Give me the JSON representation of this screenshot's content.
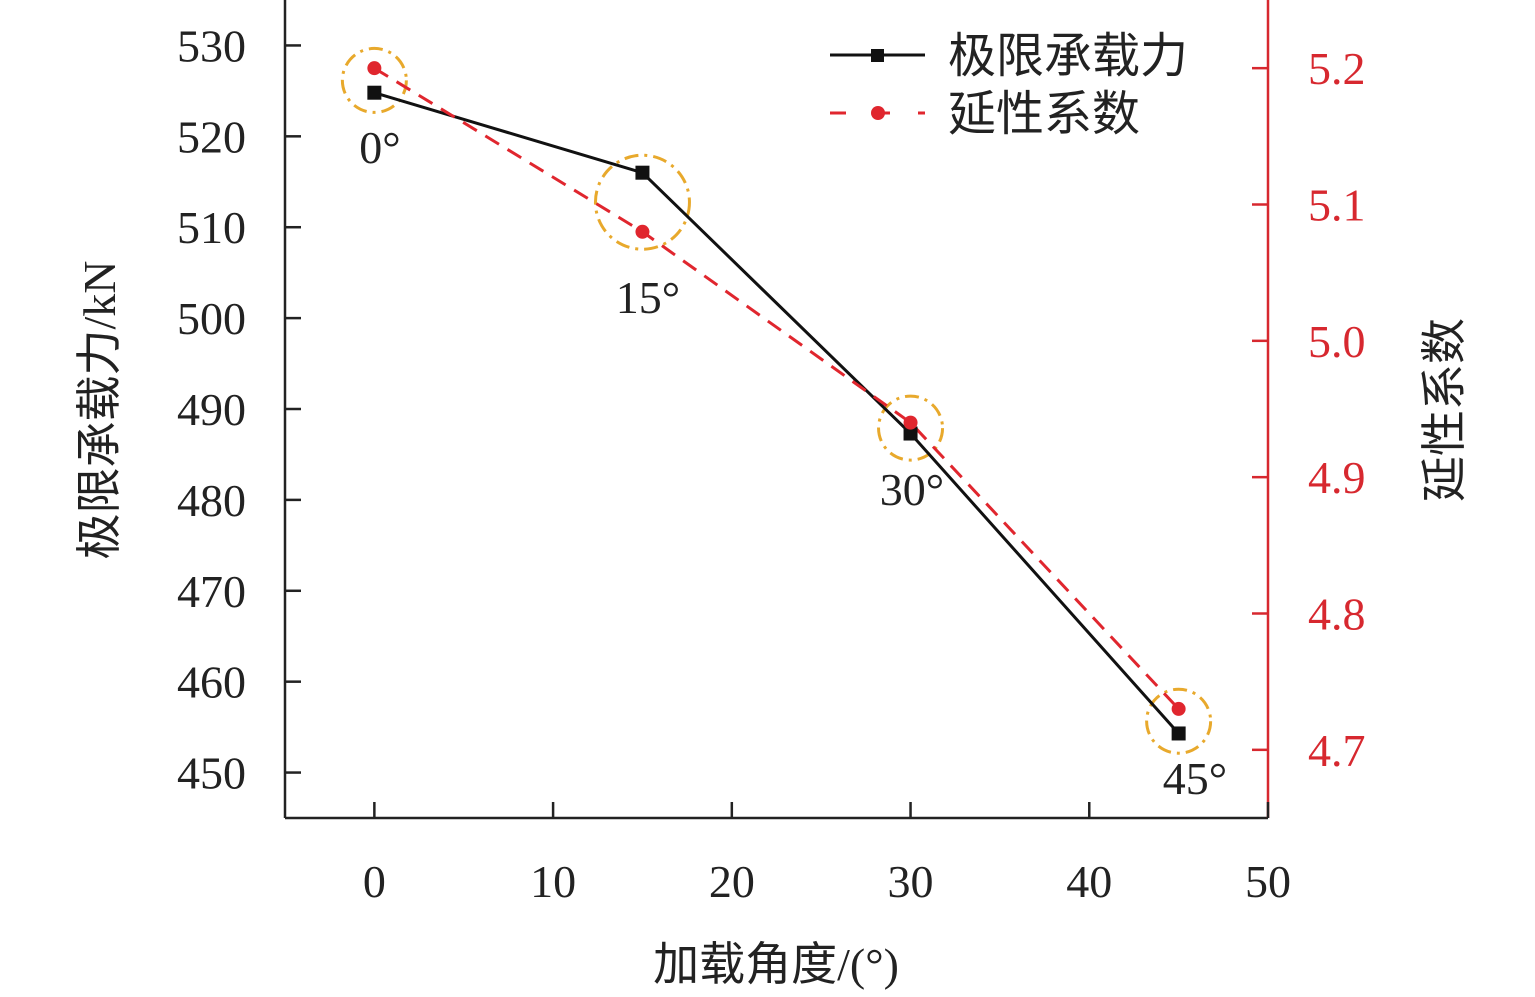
{
  "chart_data": {
    "type": "line",
    "title": "",
    "xlabel": "加载角度/(°)",
    "ylabel_left": "极限承载力/kN",
    "ylabel_right": "延性系数",
    "xlim": [
      -5,
      50
    ],
    "ylim_left": [
      445,
      535
    ],
    "ylim_right": [
      4.65,
      5.25
    ],
    "x_ticks": [
      0,
      10,
      20,
      30,
      40,
      50
    ],
    "y_left_ticks": [
      450,
      460,
      470,
      480,
      490,
      500,
      510,
      520,
      530
    ],
    "y_right_ticks": [
      "4.7",
      "4.8",
      "4.9",
      "5.0",
      "5.1",
      "5.2"
    ],
    "grid": false,
    "legend_position": "top-right",
    "x": [
      0,
      15,
      30,
      45
    ],
    "series": [
      {
        "name": "极限承载力",
        "axis": "left",
        "color": "#111111",
        "marker": "square",
        "dash": "solid",
        "values": [
          524.8,
          516.0,
          487.3,
          454.3
        ]
      },
      {
        "name": "延性系数",
        "axis": "right",
        "color": "#e0262e",
        "marker": "circle",
        "dash": "dashed",
        "values": [
          5.2,
          5.08,
          4.94,
          4.73
        ]
      }
    ],
    "annotations": [
      "0°",
      "15°",
      "30°",
      "45°"
    ],
    "right_axis_color": "#d7282f",
    "highlight_color": "#e8a92c"
  }
}
